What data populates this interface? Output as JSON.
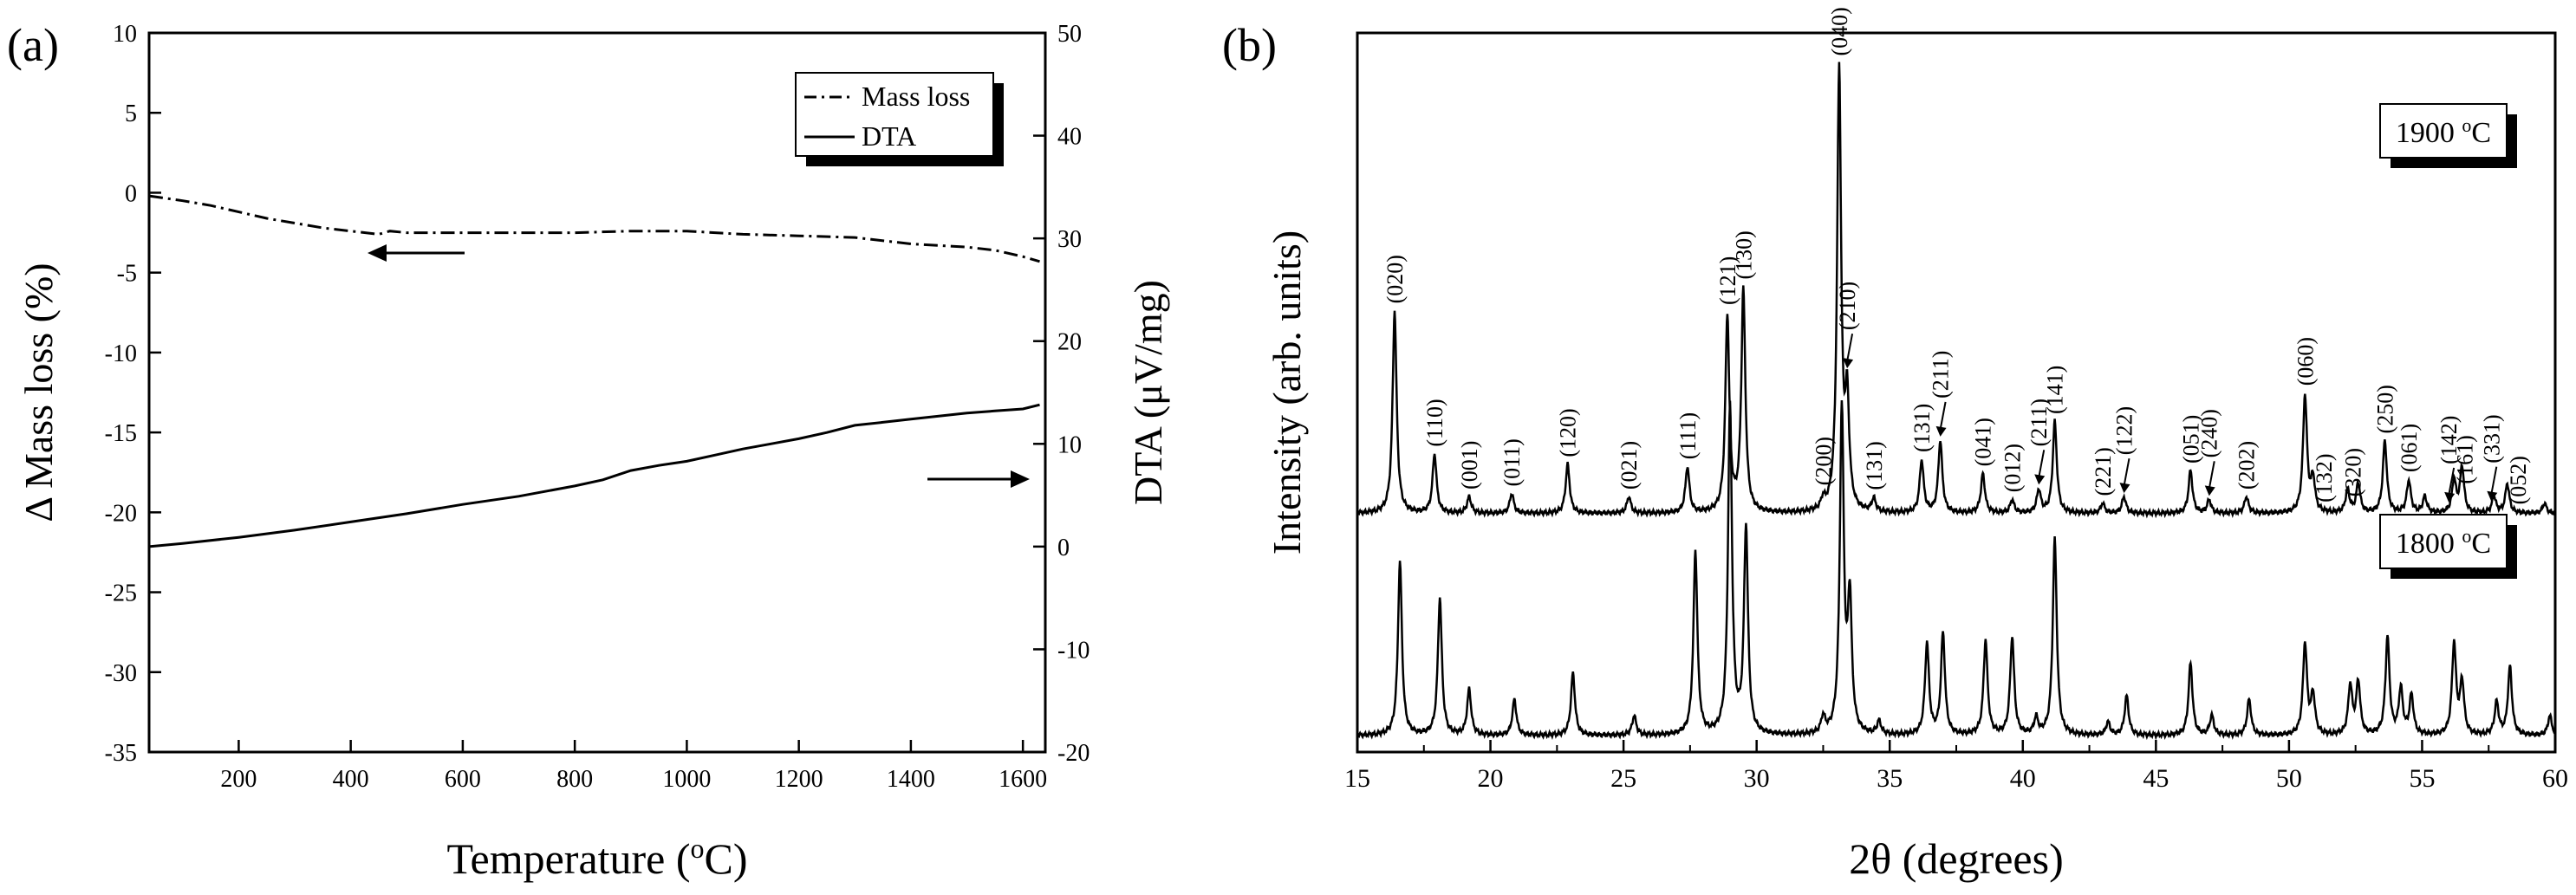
{
  "panels": {
    "a_label": "(a)",
    "b_label": "(b)"
  },
  "chart_data": [
    {
      "type": "line",
      "panel": "(a)",
      "xlabel_main": "Temperature (",
      "xlabel_sup": "o",
      "xlabel_end": "C)",
      "ylabel_left": "Δ Mass loss (%)",
      "ylabel_right": "DTA (μV/mg)",
      "xlim": [
        40,
        1640
      ],
      "ylim_left": [
        -35,
        10
      ],
      "ylim_right": [
        -20,
        50
      ],
      "x_ticks": [
        200,
        400,
        600,
        800,
        1000,
        1200,
        1400,
        1600
      ],
      "y_ticks_left": [
        10,
        5,
        0,
        -5,
        -10,
        -15,
        -20,
        -25,
        -30,
        -35
      ],
      "y_ticks_right": [
        50,
        40,
        30,
        20,
        10,
        0,
        -10,
        -20
      ],
      "legend": {
        "position": "top-right",
        "items": [
          "Mass loss",
          "DTA"
        ]
      },
      "series": [
        {
          "name": "Mass loss",
          "axis": "left",
          "style": "dash-dot",
          "x": [
            40,
            100,
            150,
            200,
            250,
            300,
            350,
            400,
            450,
            470,
            500,
            600,
            700,
            800,
            900,
            1000,
            1100,
            1200,
            1300,
            1400,
            1500,
            1550,
            1600,
            1630
          ],
          "y": [
            -0.2,
            -0.5,
            -0.8,
            -1.2,
            -1.6,
            -1.9,
            -2.2,
            -2.4,
            -2.6,
            -2.4,
            -2.5,
            -2.5,
            -2.5,
            -2.5,
            -2.4,
            -2.4,
            -2.6,
            -2.7,
            -2.8,
            -3.2,
            -3.4,
            -3.6,
            -4.0,
            -4.3
          ]
        },
        {
          "name": "DTA",
          "axis": "right",
          "style": "solid",
          "x": [
            40,
            100,
            200,
            300,
            400,
            500,
            600,
            700,
            800,
            850,
            900,
            950,
            1000,
            1050,
            1100,
            1150,
            1200,
            1250,
            1300,
            1350,
            1400,
            1450,
            1500,
            1550,
            1600,
            1630
          ],
          "y": [
            0.0,
            0.3,
            0.9,
            1.6,
            2.4,
            3.2,
            4.1,
            4.9,
            5.9,
            6.5,
            7.4,
            7.9,
            8.3,
            8.9,
            9.5,
            10.0,
            10.5,
            11.1,
            11.8,
            12.1,
            12.4,
            12.7,
            13.0,
            13.2,
            13.4,
            13.8
          ]
        }
      ],
      "arrows": [
        {
          "direction": "left",
          "points_to": "Mass loss"
        },
        {
          "direction": "right",
          "points_to": "DTA"
        }
      ]
    },
    {
      "type": "line",
      "panel": "(b)",
      "xlabel": "2θ (degrees)",
      "ylabel": "Intensity (arb. units)",
      "xlim": [
        15,
        60
      ],
      "x_ticks": [
        15,
        20,
        25,
        30,
        35,
        40,
        45,
        50,
        55,
        60
      ],
      "series": [
        {
          "name": "1900 °C",
          "label_main": "1900 ",
          "label_sup": "o",
          "label_end": "C",
          "baseline": 0.73,
          "peaks": [
            {
              "x": 16.4,
              "h": 0.62
            },
            {
              "x": 17.9,
              "h": 0.18
            },
            {
              "x": 19.2,
              "h": 0.05
            },
            {
              "x": 20.8,
              "h": 0.06
            },
            {
              "x": 22.9,
              "h": 0.15
            },
            {
              "x": 25.2,
              "h": 0.05
            },
            {
              "x": 27.4,
              "h": 0.14
            },
            {
              "x": 28.9,
              "h": 0.6
            },
            {
              "x": 29.5,
              "h": 0.68
            },
            {
              "x": 32.5,
              "h": 0.03
            },
            {
              "x": 33.1,
              "h": 1.35
            },
            {
              "x": 33.4,
              "h": 0.32
            },
            {
              "x": 34.4,
              "h": 0.04
            },
            {
              "x": 36.2,
              "h": 0.16
            },
            {
              "x": 36.9,
              "h": 0.22
            },
            {
              "x": 38.5,
              "h": 0.12
            },
            {
              "x": 39.6,
              "h": 0.04
            },
            {
              "x": 40.6,
              "h": 0.07
            },
            {
              "x": 41.2,
              "h": 0.28
            },
            {
              "x": 43.0,
              "h": 0.03
            },
            {
              "x": 43.8,
              "h": 0.05
            },
            {
              "x": 46.3,
              "h": 0.13
            },
            {
              "x": 47.0,
              "h": 0.04
            },
            {
              "x": 48.4,
              "h": 0.05
            },
            {
              "x": 50.6,
              "h": 0.36
            },
            {
              "x": 50.9,
              "h": 0.1
            },
            {
              "x": 52.2,
              "h": 0.07
            },
            {
              "x": 52.6,
              "h": 0.09
            },
            {
              "x": 53.6,
              "h": 0.22
            },
            {
              "x": 54.5,
              "h": 0.1
            },
            {
              "x": 55.1,
              "h": 0.05
            },
            {
              "x": 56.2,
              "h": 0.1
            },
            {
              "x": 56.5,
              "h": 0.14
            },
            {
              "x": 57.7,
              "h": 0.05
            },
            {
              "x": 58.2,
              "h": 0.09
            },
            {
              "x": 59.6,
              "h": 0.03
            }
          ]
        },
        {
          "name": "1800 °C",
          "label_main": "1800 ",
          "label_sup": "o",
          "label_end": "C",
          "baseline": 0.05,
          "peaks": [
            {
              "x": 16.6,
              "h": 0.53
            },
            {
              "x": 18.1,
              "h": 0.42
            },
            {
              "x": 19.2,
              "h": 0.14
            },
            {
              "x": 20.9,
              "h": 0.11
            },
            {
              "x": 23.1,
              "h": 0.19
            },
            {
              "x": 25.4,
              "h": 0.06
            },
            {
              "x": 27.7,
              "h": 0.56
            },
            {
              "x": 29.0,
              "h": 1.0
            },
            {
              "x": 29.6,
              "h": 0.63
            },
            {
              "x": 32.5,
              "h": 0.05
            },
            {
              "x": 33.2,
              "h": 0.99
            },
            {
              "x": 33.5,
              "h": 0.4
            },
            {
              "x": 34.6,
              "h": 0.04
            },
            {
              "x": 36.4,
              "h": 0.28
            },
            {
              "x": 37.0,
              "h": 0.31
            },
            {
              "x": 38.6,
              "h": 0.29
            },
            {
              "x": 39.6,
              "h": 0.3
            },
            {
              "x": 40.5,
              "h": 0.05
            },
            {
              "x": 41.2,
              "h": 0.6
            },
            {
              "x": 43.2,
              "h": 0.04
            },
            {
              "x": 43.9,
              "h": 0.12
            },
            {
              "x": 46.3,
              "h": 0.22
            },
            {
              "x": 47.1,
              "h": 0.06
            },
            {
              "x": 48.5,
              "h": 0.11
            },
            {
              "x": 50.6,
              "h": 0.28
            },
            {
              "x": 50.9,
              "h": 0.12
            },
            {
              "x": 52.3,
              "h": 0.15
            },
            {
              "x": 52.6,
              "h": 0.16
            },
            {
              "x": 53.7,
              "h": 0.3
            },
            {
              "x": 54.2,
              "h": 0.14
            },
            {
              "x": 54.6,
              "h": 0.12
            },
            {
              "x": 56.2,
              "h": 0.28
            },
            {
              "x": 56.5,
              "h": 0.16
            },
            {
              "x": 57.8,
              "h": 0.1
            },
            {
              "x": 58.3,
              "h": 0.21
            },
            {
              "x": 59.8,
              "h": 0.06
            }
          ]
        }
      ],
      "annotations": [
        {
          "hkl": "(020)",
          "x": 16.4
        },
        {
          "hkl": "(110)",
          "x": 17.9
        },
        {
          "hkl": "(001)",
          "x": 19.2
        },
        {
          "hkl": "(011)",
          "x": 20.8
        },
        {
          "hkl": "(120)",
          "x": 22.9
        },
        {
          "hkl": "(021)",
          "x": 25.2
        },
        {
          "hkl": "(111)",
          "x": 27.4
        },
        {
          "hkl": "(121)",
          "x": 28.9,
          "overbar": true
        },
        {
          "hkl": "(130)",
          "x": 29.5
        },
        {
          "hkl": "(200)",
          "x": 32.5
        },
        {
          "hkl": "(040)",
          "x": 33.1
        },
        {
          "hkl": "(210)",
          "x": 33.4,
          "arrow": true
        },
        {
          "hkl": "(131)",
          "x": 34.4,
          "overbar": true
        },
        {
          "hkl": "(131)",
          "x": 36.2
        },
        {
          "hkl": "(211)",
          "x": 36.9,
          "overbar": true,
          "arrow": true
        },
        {
          "hkl": "(041)",
          "x": 38.5
        },
        {
          "hkl": "(012)",
          "x": 39.6
        },
        {
          "hkl": "(211)",
          "x": 40.6,
          "arrow": true
        },
        {
          "hkl": "(141)",
          "x": 41.2,
          "overbar": true
        },
        {
          "hkl": "(221)",
          "x": 43.0
        },
        {
          "hkl": "(122)",
          "x": 43.8,
          "overbar": true,
          "arrow": true
        },
        {
          "hkl": "(051)",
          "x": 46.3
        },
        {
          "hkl": "(240)",
          "x": 47.0,
          "arrow": true
        },
        {
          "hkl": "(202)",
          "x": 48.4,
          "overbar": true
        },
        {
          "hkl": "(060)",
          "x": 50.6
        },
        {
          "hkl": "(132)",
          "x": 51.3
        },
        {
          "hkl": "(320)",
          "x": 52.4
        },
        {
          "hkl": "(250)",
          "x": 53.6
        },
        {
          "hkl": "(061)",
          "x": 54.5
        },
        {
          "hkl": "(142)",
          "x": 56.0,
          "arrow": true
        },
        {
          "hkl": "(161)",
          "x": 56.6,
          "overbar": true
        },
        {
          "hkl": "(331)",
          "x": 57.6,
          "overbar": true,
          "arrow": true
        },
        {
          "hkl": "(052)",
          "x": 58.6
        }
      ]
    }
  ]
}
